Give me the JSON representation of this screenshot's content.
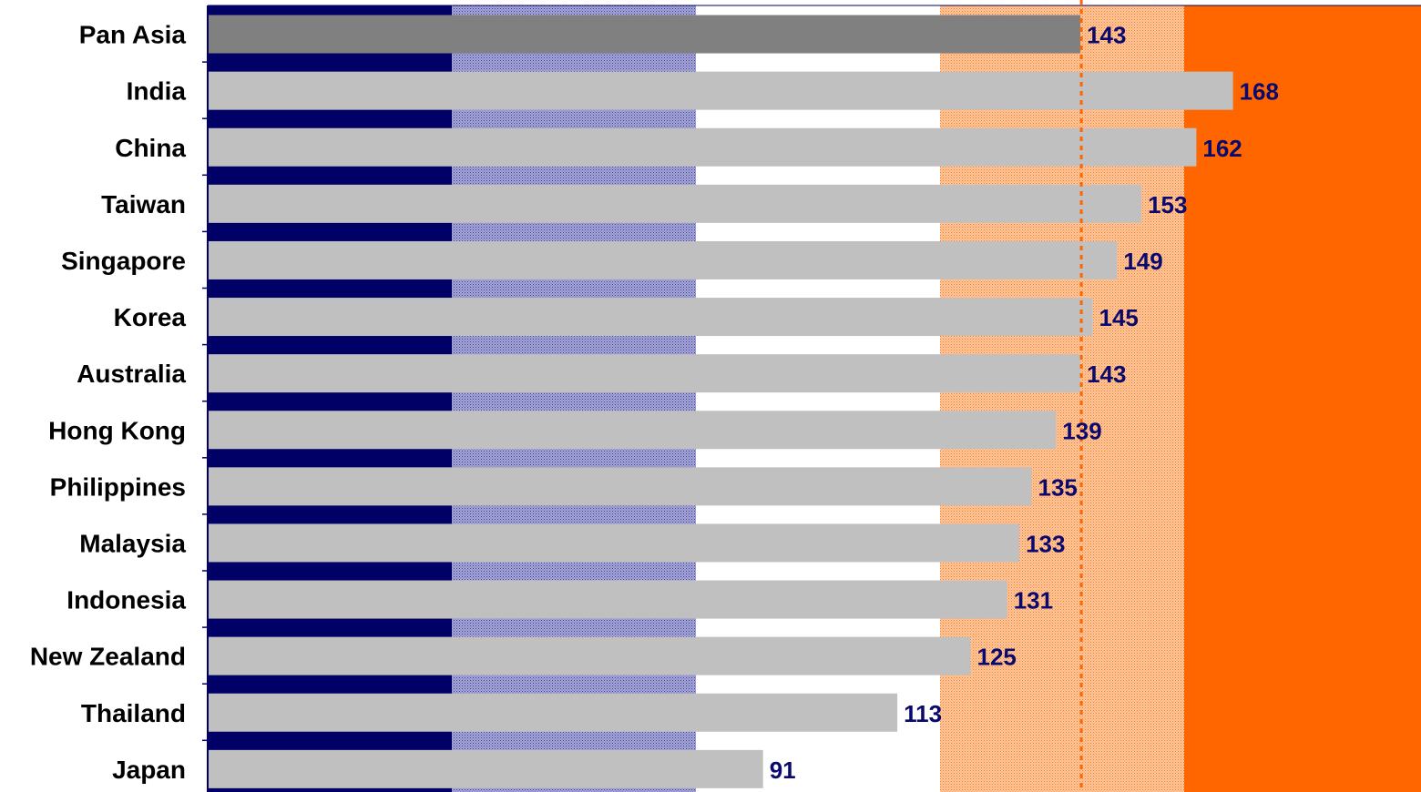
{
  "chart_data": {
    "type": "bar",
    "orientation": "horizontal",
    "categories": [
      "Pan Asia",
      "India",
      "China",
      "Taiwan",
      "Singapore",
      "Korea",
      "Australia",
      "Hong Kong",
      "Philippines",
      "Malaysia",
      "Indonesia",
      "New Zealand",
      "Thailand",
      "Japan"
    ],
    "values": [
      143,
      168,
      162,
      153,
      149,
      145,
      143,
      139,
      135,
      133,
      131,
      125,
      113,
      91
    ],
    "highlight_category": "Pan Asia",
    "reference_line_value": 143,
    "xlim": [
      0,
      200
    ],
    "background_bands": [
      {
        "from": 0,
        "to": 40,
        "color": "#000066",
        "style": "solid"
      },
      {
        "from": 40,
        "to": 80,
        "color": "#8c8cc8",
        "style": "pattern"
      },
      {
        "from": 80,
        "to": 120,
        "color": "#ffffff",
        "style": "solid"
      },
      {
        "from": 120,
        "to": 160,
        "color": "#ffb070",
        "style": "pattern"
      },
      {
        "from": 160,
        "to": 200,
        "color": "#ff6600",
        "style": "solid"
      }
    ],
    "bar_color": "#c0c0c0",
    "highlight_color": "#808080",
    "label_color": "#0a0a6e",
    "title": "",
    "xlabel": "",
    "ylabel": "",
    "legend": "none",
    "grid": false
  }
}
